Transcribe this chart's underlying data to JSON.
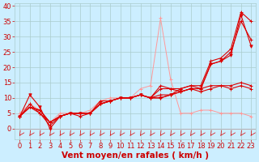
{
  "xlabel": "Vent moyen/en rafales ( km/h )",
  "bg_color": "#cceeff",
  "grid_color": "#aacccc",
  "xlim": [
    -0.5,
    23.5
  ],
  "ylim": [
    -3.5,
    41
  ],
  "xticks": [
    0,
    1,
    2,
    3,
    4,
    5,
    6,
    7,
    8,
    9,
    10,
    11,
    12,
    13,
    14,
    15,
    16,
    17,
    18,
    19,
    20,
    21,
    22,
    23
  ],
  "yticks": [
    0,
    5,
    10,
    15,
    20,
    25,
    30,
    35,
    40
  ],
  "line_light_x": [
    0,
    1,
    2,
    3,
    4,
    5,
    6,
    7,
    8,
    9,
    10,
    11,
    12,
    13,
    14,
    15,
    16,
    17,
    18,
    19,
    20,
    21,
    22,
    23
  ],
  "line_light_y": [
    5,
    8,
    6,
    2,
    5,
    5,
    5,
    6,
    9,
    10,
    10,
    10,
    13,
    14,
    36,
    16,
    5,
    5,
    6,
    6,
    5,
    5,
    5,
    4
  ],
  "line1_x": [
    0,
    1,
    2,
    3,
    4,
    5,
    6,
    7,
    8,
    9,
    10,
    11,
    12,
    13,
    14,
    15,
    16,
    17,
    18,
    19,
    20,
    21,
    22,
    23
  ],
  "line1_y": [
    4,
    7,
    5,
    1,
    4,
    5,
    4,
    5,
    8,
    9,
    10,
    10,
    11,
    10,
    10,
    11,
    12,
    13,
    13,
    21,
    22,
    25,
    35,
    29
  ],
  "line2_x": [
    0,
    1,
    2,
    3,
    4,
    5,
    6,
    7,
    8,
    9,
    10,
    11,
    12,
    13,
    14,
    15,
    16,
    17,
    18,
    19,
    20,
    21,
    22,
    23
  ],
  "line2_y": [
    4,
    8,
    5,
    2,
    4,
    5,
    5,
    5,
    9,
    9,
    10,
    10,
    11,
    10,
    11,
    11,
    13,
    14,
    14,
    22,
    23,
    26,
    38,
    35
  ],
  "line3_x": [
    0,
    1,
    2,
    3,
    4,
    5,
    6,
    7,
    8,
    9,
    10,
    11,
    12,
    13,
    14,
    15,
    16,
    17,
    18,
    19,
    20,
    21,
    22,
    23
  ],
  "line3_y": [
    4,
    11,
    7,
    0,
    4,
    5,
    5,
    5,
    8,
    9,
    10,
    10,
    11,
    10,
    10,
    11,
    12,
    13,
    13,
    21,
    22,
    24,
    37,
    27
  ],
  "line4_x": [
    0,
    1,
    2,
    3,
    4,
    5,
    6,
    7,
    8,
    9,
    10,
    11,
    12,
    13,
    14,
    15,
    16,
    17,
    18,
    19,
    20,
    21,
    22,
    23
  ],
  "line4_y": [
    4,
    7,
    6,
    2,
    4,
    5,
    5,
    5,
    8,
    9,
    10,
    10,
    11,
    10,
    14,
    13,
    13,
    14,
    13,
    14,
    14,
    14,
    15,
    14
  ],
  "line5_x": [
    0,
    1,
    2,
    3,
    4,
    5,
    6,
    7,
    8,
    9,
    10,
    11,
    12,
    13,
    14,
    15,
    16,
    17,
    18,
    19,
    20,
    21,
    22,
    23
  ],
  "line5_y": [
    4,
    7,
    6,
    2,
    4,
    5,
    5,
    5,
    8,
    9,
    10,
    10,
    11,
    10,
    13,
    13,
    12,
    13,
    12,
    13,
    14,
    13,
    14,
    13
  ],
  "color_dark_red": "#dd0000",
  "color_light_red": "#ff9999",
  "xlabel_color": "#cc0000",
  "tick_color": "#cc0000",
  "xlabel_fontsize": 7.5,
  "tick_fontsize": 6
}
